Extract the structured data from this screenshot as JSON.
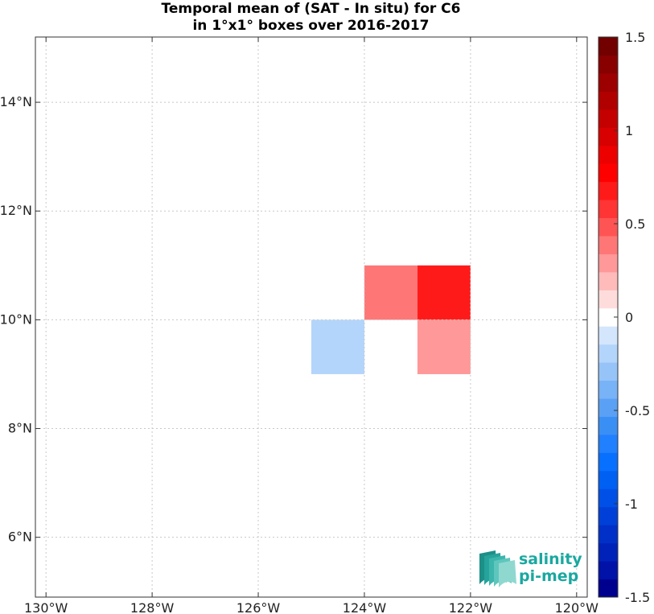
{
  "title": {
    "line1": "Temporal mean of (SAT - In situ) for C6",
    "line2": "in 1°x1° boxes over 2016-2017"
  },
  "chart_data": {
    "type": "heatmap",
    "x_range": [
      -130.2,
      -119.8
    ],
    "y_range": [
      4.9,
      15.2
    ],
    "x_ticks": [
      {
        "value": -130,
        "label": "130°W"
      },
      {
        "value": -128,
        "label": "128°W"
      },
      {
        "value": -126,
        "label": "126°W"
      },
      {
        "value": -124,
        "label": "124°W"
      },
      {
        "value": -122,
        "label": "122°W"
      },
      {
        "value": -120,
        "label": "120°W"
      }
    ],
    "y_ticks": [
      {
        "value": 6,
        "label": "6°N"
      },
      {
        "value": 8,
        "label": "8°N"
      },
      {
        "value": 10,
        "label": "10°N"
      },
      {
        "value": 12,
        "label": "12°N"
      },
      {
        "value": 14,
        "label": "14°N"
      }
    ],
    "grid": true,
    "cells": [
      {
        "lon_min": -124,
        "lon_max": -123,
        "lat_min": 10,
        "lat_max": 11,
        "value": 0.35
      },
      {
        "lon_min": -123,
        "lon_max": -122,
        "lat_min": 10,
        "lat_max": 11,
        "value": 0.65
      },
      {
        "lon_min": -125,
        "lon_max": -124,
        "lat_min": 9,
        "lat_max": 10,
        "value": -0.15
      },
      {
        "lon_min": -123,
        "lon_max": -122,
        "lat_min": 9,
        "lat_max": 10,
        "value": 0.25
      }
    ],
    "colorbar": {
      "range": [
        -1.5,
        1.5
      ],
      "ticks": [
        {
          "value": 1.5,
          "label": "1.5"
        },
        {
          "value": 1,
          "label": "1"
        },
        {
          "value": 0.5,
          "label": "0.5"
        },
        {
          "value": 0,
          "label": "0"
        },
        {
          "value": -0.5,
          "label": "-0.5"
        },
        {
          "value": -1,
          "label": "-1"
        },
        {
          "value": -1.5,
          "label": "-1.5"
        }
      ],
      "colors": [
        "#00008f",
        "#0012a8",
        "#0022b8",
        "#0030c8",
        "#0040d8",
        "#0050e8",
        "#0060f4",
        "#0870ff",
        "#2080ff",
        "#3a8ff5",
        "#5aa0f5",
        "#78b2f7",
        "#96c4f9",
        "#b4d5fb",
        "#d4e6fc",
        "#ffffff",
        "#ffdcdc",
        "#ffbaba",
        "#ff9898",
        "#ff7676",
        "#ff5454",
        "#ff3434",
        "#ff1a1a",
        "#ff0000",
        "#ec0000",
        "#d80000",
        "#c40000",
        "#b00000",
        "#9c0000",
        "#880000",
        "#720000"
      ]
    },
    "logo": {
      "line1": "salinity",
      "line2": "pi-mep"
    }
  }
}
